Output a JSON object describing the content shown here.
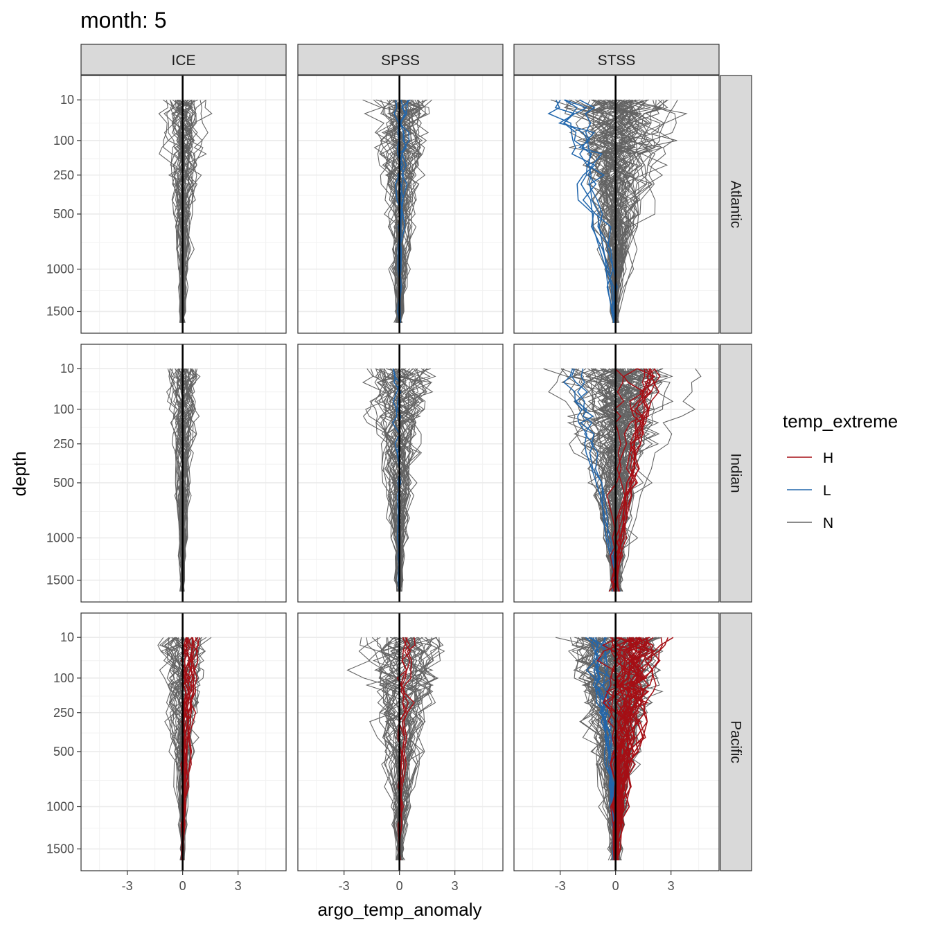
{
  "chart_data": {
    "type": "line",
    "title": "month: 5",
    "xlabel": "argo_temp_anomaly",
    "ylabel": "depth",
    "x_ticks": [
      "-3",
      "0",
      "3"
    ],
    "x_tick_values": [
      -3,
      0,
      3
    ],
    "xlim": [
      -5.5,
      5.6
    ],
    "y_ticks": [
      "10",
      "100",
      "250",
      "500",
      "1000",
      "1500"
    ],
    "y_tick_values": [
      10,
      100,
      250,
      500,
      1000,
      1500
    ],
    "ylim": [
      1700,
      0
    ],
    "y_scale": "reversed",
    "y_scale_transform": "sqrt",
    "grid": true,
    "reference_line": {
      "x": 0,
      "color": "#000000"
    },
    "facet_columns": [
      "ICE",
      "SPSS",
      "STSS"
    ],
    "facet_rows": [
      "Atlantic",
      "Indian",
      "Pacific"
    ],
    "legend": {
      "title": "temp_extreme",
      "position": "right",
      "entries": [
        {
          "label": "H",
          "color": "#A50F15"
        },
        {
          "label": "L",
          "color": "#2166AC"
        },
        {
          "label": "N",
          "color": "#636363"
        }
      ]
    },
    "panels": [
      {
        "column": "ICE",
        "row": "Atlantic",
        "groups": {
          "N": {
            "count": 40,
            "surface_spread": 0.9,
            "deep_spread": 0.2
          }
        }
      },
      {
        "column": "SPSS",
        "row": "Atlantic",
        "groups": {
          "N": {
            "count": 45,
            "surface_spread": 1.3,
            "deep_spread": 0.3
          },
          "L": {
            "count": 4,
            "surface_spread": 0.5,
            "deep_spread": 0.1
          }
        }
      },
      {
        "column": "STSS",
        "row": "Atlantic",
        "groups": {
          "N": {
            "count": 70,
            "surface_spread": 2.0,
            "deep_spread": 0.2
          },
          "L": {
            "count": 5,
            "surface_center": -3.0,
            "surface_spread": 1.4,
            "deep_spread": 0.2
          }
        }
      },
      {
        "column": "ICE",
        "row": "Indian",
        "groups": {
          "N": {
            "count": 40,
            "surface_spread": 0.6,
            "deep_spread": 0.15
          }
        }
      },
      {
        "column": "SPSS",
        "row": "Indian",
        "groups": {
          "N": {
            "count": 45,
            "surface_spread": 1.2,
            "deep_spread": 0.25
          },
          "L": {
            "count": 2,
            "surface_spread": 0.4,
            "deep_spread": 0.1
          }
        }
      },
      {
        "column": "STSS",
        "row": "Indian",
        "groups": {
          "N": {
            "count": 80,
            "surface_spread": 1.8,
            "deep_spread": 0.4
          },
          "H": {
            "count": 10,
            "surface_center": 1.8,
            "surface_spread": 0.8,
            "deep_spread": 0.4
          },
          "L": {
            "count": 3,
            "surface_center": -2.0,
            "surface_spread": 0.6,
            "deep_spread": 0.3
          }
        }
      },
      {
        "column": "ICE",
        "row": "Pacific",
        "groups": {
          "N": {
            "count": 35,
            "surface_spread": 0.9,
            "deep_spread": 0.15
          },
          "H": {
            "count": 12,
            "surface_center": 0.6,
            "surface_spread": 0.4,
            "deep_spread": 0.1
          }
        }
      },
      {
        "column": "SPSS",
        "row": "Pacific",
        "groups": {
          "N": {
            "count": 45,
            "surface_spread": 1.5,
            "deep_spread": 0.3
          },
          "H": {
            "count": 4,
            "surface_center": 0.3,
            "surface_spread": 0.6,
            "deep_spread": 0.1
          }
        }
      },
      {
        "column": "STSS",
        "row": "Pacific",
        "groups": {
          "N": {
            "count": 90,
            "surface_spread": 1.7,
            "deep_spread": 0.4
          },
          "H": {
            "count": 35,
            "surface_center": 1.2,
            "surface_spread": 1.2,
            "deep_spread": 0.2
          },
          "L": {
            "count": 8,
            "surface_center": -1.5,
            "surface_spread": 0.6,
            "deep_spread": 0.2
          }
        }
      }
    ]
  }
}
